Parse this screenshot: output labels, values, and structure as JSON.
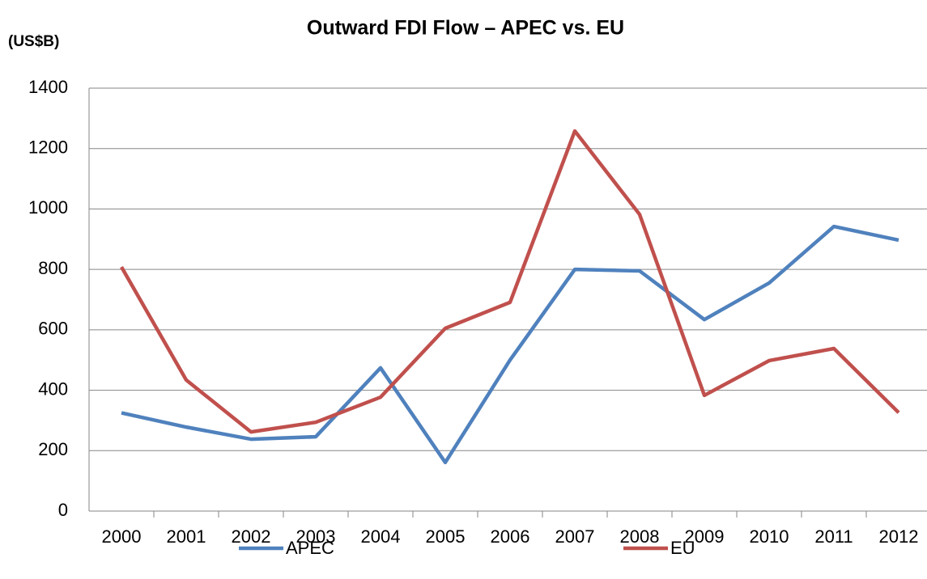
{
  "chart_data": {
    "type": "line",
    "title": "Outward FDI Flow – APEC vs. EU",
    "y_label": "(US$B)",
    "categories": [
      "2000",
      "2001",
      "2002",
      "2003",
      "2004",
      "2005",
      "2006",
      "2007",
      "2008",
      "2009",
      "2010",
      "2011",
      "2012"
    ],
    "series": [
      {
        "name": "APEC",
        "color": "#4f81bd",
        "values": [
          325,
          278,
          238,
          246,
          474,
          161,
          500,
          800,
          795,
          634,
          755,
          942,
          897
        ]
      },
      {
        "name": "EU",
        "color": "#c0504d",
        "values": [
          808,
          434,
          262,
          294,
          377,
          605,
          691,
          1258,
          982,
          383,
          498,
          538,
          326
        ]
      }
    ],
    "ylim": [
      0,
      1400
    ],
    "yticks": [
      0,
      200,
      400,
      600,
      800,
      1000,
      1200,
      1400
    ],
    "grid": true,
    "legend": "bottom"
  }
}
